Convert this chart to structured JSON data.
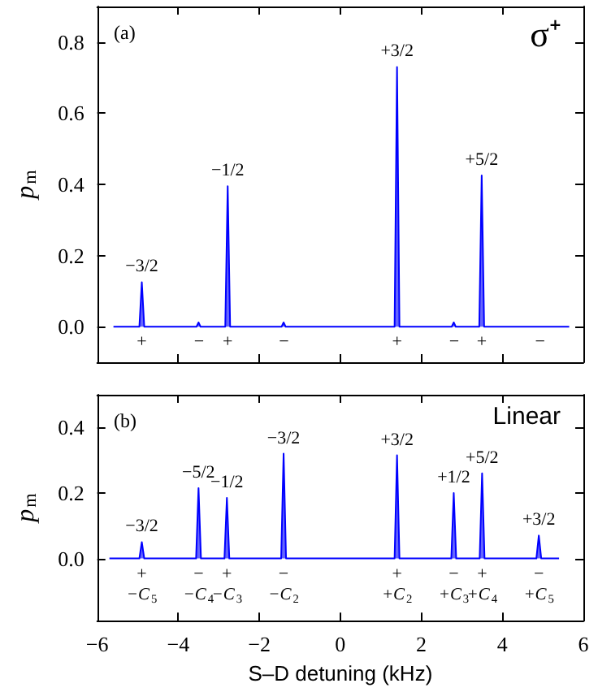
{
  "chart_data": [
    {
      "type": "line",
      "color": "#0000ff",
      "ylabel": "p$_{m}$",
      "xlim": [
        -6,
        6
      ],
      "xticks": [
        -6,
        -4,
        -2,
        0,
        2,
        4,
        6
      ],
      "ylim": [
        -0.1,
        0.9
      ],
      "yticks": [
        {
          "value": 0,
          "label": "0.0"
        },
        0.2,
        0.4,
        0.6,
        0.8
      ],
      "tick_labels": "y",
      "x": [
        -5.6,
        -4.96,
        -4.9,
        -4.84,
        -3.55,
        -3.5,
        -3.45,
        -2.84,
        -2.78,
        -2.72,
        -1.45,
        -1.4,
        -1.35,
        1.34,
        1.4,
        1.46,
        2.75,
        2.8,
        2.85,
        3.43,
        3.49,
        3.55,
        4.87,
        5.65
      ],
      "values": [
        0,
        0,
        0.125,
        0,
        0,
        0.012,
        0,
        0,
        0.395,
        0,
        0,
        0.012,
        0,
        0,
        0.73,
        0,
        0,
        0.012,
        0,
        0,
        0.425,
        0,
        0,
        0
      ],
      "annotations": [
        "(a)",
        "σ⁺",
        {
          "text": "−3/2",
          "x": -4.9,
          "y": 0.125
        },
        {
          "text": "−1/2",
          "x": -2.78,
          "y": 0.395
        },
        {
          "text": "+3/2",
          "x": 1.4,
          "y": 0.73
        },
        {
          "text": "+5/2",
          "x": 3.49,
          "y": 0.425
        },
        {
          "text": "+",
          "x": -4.96,
          "y": 0
        },
        {
          "text": "−",
          "x": -3.55,
          "y": 0
        },
        {
          "text": "+",
          "x": -2.84,
          "y": 0
        },
        {
          "text": "−",
          "x": -1.45,
          "y": 0
        },
        {
          "text": "+",
          "x": 1.34,
          "y": 0
        },
        {
          "text": "−",
          "x": 2.75,
          "y": 0
        },
        {
          "text": "+",
          "x": 3.43,
          "y": 0
        },
        {
          "text": "−",
          "x": 4.87,
          "y": 0
        }
      ]
    },
    {
      "type": "line",
      "color": "#0000ff",
      "ylabel": "p$_{m}$",
      "xlabel": "S–D detuning (kHz)",
      "xlim": [
        -6,
        6
      ],
      "xticks": [
        -6,
        -4,
        -2,
        0,
        2,
        4,
        6
      ],
      "ylim": [
        -0.19,
        0.5
      ],
      "yticks": [
        {
          "value": 0,
          "label": "0.0"
        },
        0.2,
        0.4
      ],
      "x": [
        -5.7,
        -4.96,
        -4.9,
        -4.84,
        -3.56,
        -3.5,
        -3.44,
        -2.86,
        -2.8,
        -2.74,
        -1.46,
        -1.4,
        -1.34,
        1.34,
        1.4,
        1.46,
        2.74,
        2.8,
        2.86,
        3.44,
        3.5,
        3.56,
        4.84,
        4.9,
        4.96,
        5.4
      ],
      "values": [
        0,
        0,
        0.05,
        0,
        0,
        0.215,
        0,
        0,
        0.185,
        0,
        0,
        0.32,
        0,
        0,
        0.315,
        0,
        0,
        0.2,
        0,
        0,
        0.26,
        0,
        0,
        0.07,
        0,
        0
      ],
      "annotations": [
        "(b)",
        "Linear",
        {
          "text": "−3/2",
          "x": -4.9,
          "y": 0.05
        },
        {
          "text": "−5/2",
          "x": -3.5,
          "y": 0.215
        },
        {
          "text": "−1/2",
          "x": -2.8,
          "y": 0.185
        },
        {
          "text": "−3/2",
          "x": -1.4,
          "y": 0.32
        },
        {
          "text": "+3/2",
          "x": 1.4,
          "y": 0.315
        },
        {
          "text": "+1/2",
          "x": 2.8,
          "y": 0.2
        },
        {
          "text": "+5/2",
          "x": 3.5,
          "y": 0.26
        },
        {
          "text": "+3/2",
          "x": 4.9,
          "y": 0.07
        },
        {
          "text": "+",
          "x": -4.96,
          "y": 0
        },
        {
          "text": "−",
          "x": -3.56,
          "y": 0
        },
        {
          "text": "+",
          "x": -2.86,
          "y": 0
        },
        {
          "text": "−",
          "x": -1.46,
          "y": 0
        },
        {
          "text": "+",
          "x": 1.34,
          "y": 0
        },
        {
          "text": "−",
          "x": 2.74,
          "y": 0
        },
        {
          "text": "+",
          "x": 3.44,
          "y": 0
        },
        {
          "text": "−",
          "x": 4.84,
          "y": 0
        },
        {
          "text": "−C$_{5}$",
          "x": -4.96,
          "y": 0
        },
        {
          "text": "−C$_{4}$",
          "x": -3.56,
          "y": 0
        },
        {
          "text": "−C$_{3}$",
          "x": -2.86,
          "y": 0
        },
        {
          "text": "−C$_{2}$",
          "x": -1.46,
          "y": 0
        },
        {
          "text": "+C$_{2}$",
          "x": 1.34,
          "y": 0
        },
        {
          "text": "+C$_{3}$",
          "x": 2.74,
          "y": 0
        },
        {
          "text": "+C$_{4}$",
          "x": 3.44,
          "y": 0
        },
        {
          "text": "+C$_{5}$",
          "x": 4.84,
          "y": 0
        }
      ]
    }
  ]
}
